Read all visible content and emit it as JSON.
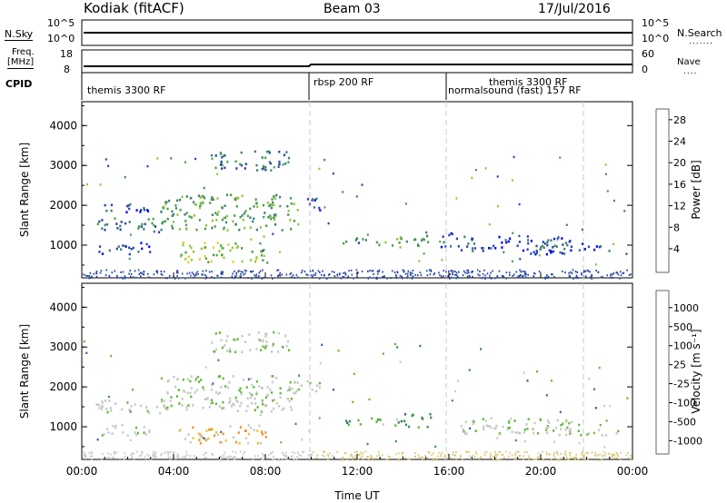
{
  "header": {
    "station": "Kodiak (fitACF)",
    "beam": "Beam 03",
    "date": "17/Jul/2016"
  },
  "top_panels": {
    "nsky_label": "N.Sky",
    "nsearch_label": "N.Search",
    "nsky_ticks": [
      "10^5",
      "10^0"
    ],
    "nsearch_ticks": [
      "10^5",
      "10^0"
    ],
    "freq_label_1": "Freq.",
    "freq_label_2": "[MHz]",
    "freq_ticks": [
      "18",
      "8"
    ],
    "nave_label": "Nave",
    "nave_ticks": [
      "60",
      "0"
    ],
    "cpid_label": "CPID",
    "cpid_segments": [
      {
        "label": "themis 3300 RF",
        "start_h": 0
      },
      {
        "label": "rbsp 200 RF",
        "start_h": 10
      },
      {
        "label": "themis 3300 RF",
        "start_h": 16
      },
      {
        "label": "normalsound (fast) 157 RF",
        "start_h": 16
      }
    ]
  },
  "chart_data": [
    {
      "type": "heatmap",
      "name": "power",
      "xlabel": "",
      "ylabel": "Slant Range [km]",
      "xlim": [
        0,
        24
      ],
      "ylim": [
        180,
        4600
      ],
      "yticks": [
        "1000",
        "2000",
        "3000",
        "4000"
      ],
      "colorbar": {
        "label": "Power [dB]",
        "ticks": [
          "4",
          "8",
          "12",
          "16",
          "20",
          "24",
          "28"
        ],
        "colors": [
          "#0000ff",
          "#2846a8",
          "#3e8070",
          "#48a048",
          "#8cc83c",
          "#f0c828",
          "#f0a020",
          "#f07818",
          "#f04818",
          "#ff0000"
        ]
      },
      "scatter_regions": [
        {
          "x": [
            0.6,
            3.8
          ],
          "y": [
            1350,
            1700
          ],
          "level": 2
        },
        {
          "x": [
            0.6,
            3.0
          ],
          "y": [
            800,
            1100
          ],
          "level": 1
        },
        {
          "x": [
            0.8,
            3.0
          ],
          "y": [
            1800,
            2050
          ],
          "level": 1
        },
        {
          "x": [
            3.4,
            9.4
          ],
          "y": [
            1400,
            2300
          ],
          "level": 3
        },
        {
          "x": [
            5.6,
            9.0
          ],
          "y": [
            2900,
            3400
          ],
          "level": 2
        },
        {
          "x": [
            4.2,
            8.0
          ],
          "y": [
            600,
            1100
          ],
          "level": 4
        },
        {
          "x": [
            9.4,
            10.5
          ],
          "y": [
            1900,
            2200
          ],
          "level": 1
        },
        {
          "x": [
            11.3,
            12.6
          ],
          "y": [
            1050,
            1250
          ],
          "level": 2
        },
        {
          "x": [
            12.8,
            14.0
          ],
          "y": [
            950,
            1250
          ],
          "level": 3
        },
        {
          "x": [
            14.0,
            15.2
          ],
          "y": [
            1000,
            1350
          ],
          "level": 3
        },
        {
          "x": [
            15.6,
            16.4
          ],
          "y": [
            900,
            1350
          ],
          "level": 1
        },
        {
          "x": [
            16.5,
            21.8
          ],
          "y": [
            850,
            1250
          ],
          "level": 1
        },
        {
          "x": [
            19.5,
            23.5
          ],
          "y": [
            800,
            1000
          ],
          "level": 1
        }
      ]
    },
    {
      "type": "heatmap",
      "name": "velocity",
      "xlabel": "Time UT",
      "ylabel": "Slant Range [km]",
      "xlim": [
        0,
        24
      ],
      "ylim": [
        180,
        4600
      ],
      "xticks": [
        "00:00",
        "04:00",
        "08:00",
        "12:00",
        "16:00",
        "20:00",
        "00:00"
      ],
      "yticks": [
        "1000",
        "2000",
        "3000",
        "4000"
      ],
      "colorbar": {
        "label": "Velocity [m s⁻¹]",
        "ticks": [
          "1000",
          "500",
          "100",
          "25",
          "-25",
          "-100",
          "-500",
          "-1000"
        ],
        "colors": [
          "#1e3cb4",
          "#2e64a0",
          "#3c8c50",
          "#62b838",
          "#c8c8c8",
          "#c8c8c8",
          "#f0c030",
          "#f09020",
          "#f05018",
          "#ff0000"
        ]
      },
      "scatter_regions": [
        {
          "x": [
            0.6,
            3.8
          ],
          "y": [
            1350,
            1700
          ],
          "level": 4
        },
        {
          "x": [
            0.6,
            3.0
          ],
          "y": [
            800,
            1100
          ],
          "level": 4
        },
        {
          "x": [
            3.4,
            9.4
          ],
          "y": [
            1400,
            2300
          ],
          "level": 4
        },
        {
          "x": [
            5.6,
            9.0
          ],
          "y": [
            2900,
            3400
          ],
          "level": 4
        },
        {
          "x": [
            4.2,
            8.0
          ],
          "y": [
            600,
            1100
          ],
          "level": 6
        },
        {
          "x": [
            9.4,
            10.5
          ],
          "y": [
            1900,
            2200
          ],
          "level": 4
        },
        {
          "x": [
            11.3,
            12.6
          ],
          "y": [
            1050,
            1250
          ],
          "level": 2
        },
        {
          "x": [
            12.8,
            14.0
          ],
          "y": [
            950,
            1250
          ],
          "level": 3
        },
        {
          "x": [
            14.0,
            15.2
          ],
          "y": [
            1000,
            1350
          ],
          "level": 2
        },
        {
          "x": [
            16.5,
            21.8
          ],
          "y": [
            850,
            1250
          ],
          "level": 4
        },
        {
          "x": [
            19.5,
            23.5
          ],
          "y": [
            800,
            1000
          ],
          "level": 4
        }
      ]
    }
  ]
}
